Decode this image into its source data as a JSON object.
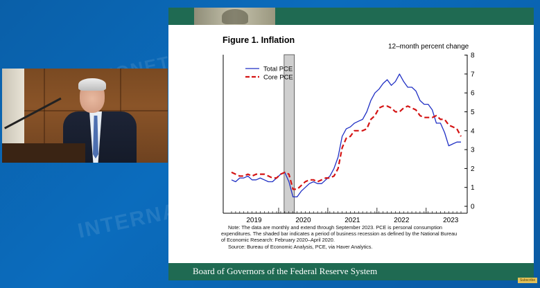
{
  "background": {
    "watermark_1": "FINANCE MONETARY INTERNATIONAL",
    "watermark_2": "INTERNATIONAL"
  },
  "slide": {
    "title": "Figure 1. Inflation",
    "units_label": "12–month percent change",
    "footer": "Board of Governors of the Federal Reserve System",
    "note_lines": [
      "Note: The data are monthly and extend through September 2023. PCE is personal consumption",
      "expenditures. The shaded bar indicates a period of business recession as defined by the National Bureau",
      "of Economic Research: February 2020–April 2020.",
      "Source: Bureau of Economic Analysis, PCE, via Haver Analytics."
    ]
  },
  "corner_badge": "Subscribe",
  "chart_data": {
    "type": "line",
    "title": "Figure 1. Inflation",
    "ylabel": "12–month percent change",
    "ylim": [
      0,
      8
    ],
    "yticks": [
      "0",
      "1",
      "2",
      "3",
      "4",
      "5",
      "6",
      "7",
      "8"
    ],
    "xticks": [
      "2019",
      "2020",
      "2021",
      "2022",
      "2023"
    ],
    "x_start": "2019-01",
    "x_end": "2023-09",
    "recession_shading": [
      "2020-02",
      "2020-04"
    ],
    "legend": [
      "Total PCE",
      "Core PCE"
    ],
    "colors": {
      "total": "#1f2fc4",
      "core": "#d41414"
    },
    "series": [
      {
        "name": "Total PCE",
        "style": "solid",
        "values": [
          1.4,
          1.3,
          1.5,
          1.5,
          1.6,
          1.4,
          1.4,
          1.5,
          1.4,
          1.3,
          1.3,
          1.5,
          1.7,
          1.8,
          1.3,
          0.5,
          0.5,
          0.8,
          1.0,
          1.2,
          1.3,
          1.2,
          1.2,
          1.4,
          1.6,
          2.0,
          2.6,
          3.7,
          4.1,
          4.2,
          4.4,
          4.5,
          4.6,
          5.0,
          5.6,
          6.0,
          6.2,
          6.5,
          6.7,
          6.4,
          6.6,
          7.0,
          6.6,
          6.3,
          6.3,
          6.1,
          5.6,
          5.4,
          5.4,
          5.1,
          4.4,
          4.4,
          3.9,
          3.2,
          3.3,
          3.4,
          3.4
        ]
      },
      {
        "name": "Core PCE",
        "style": "dashed",
        "values": [
          1.8,
          1.7,
          1.6,
          1.6,
          1.7,
          1.6,
          1.7,
          1.7,
          1.7,
          1.6,
          1.5,
          1.5,
          1.7,
          1.8,
          1.7,
          0.9,
          0.9,
          1.1,
          1.3,
          1.4,
          1.4,
          1.3,
          1.4,
          1.5,
          1.5,
          1.6,
          2.0,
          3.1,
          3.6,
          3.7,
          4.0,
          4.0,
          4.0,
          4.1,
          4.6,
          4.8,
          5.2,
          5.3,
          5.3,
          5.2,
          5.0,
          5.0,
          5.2,
          5.3,
          5.2,
          5.1,
          4.8,
          4.7,
          4.7,
          4.7,
          4.8,
          4.6,
          4.6,
          4.3,
          4.2,
          4.1,
          3.7
        ]
      }
    ]
  }
}
